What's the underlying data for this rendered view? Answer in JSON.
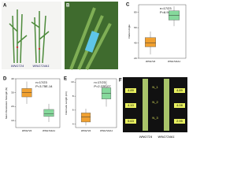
{
  "photos": {
    "A": {
      "label": "A",
      "captions": [
        "WNG724",
        "WNG724A1"
      ]
    },
    "B": {
      "label": "B"
    },
    "F": {
      "label": "F",
      "left": [
        "4.89",
        "4.10",
        "5.63"
      ],
      "right": [
        "4.89",
        "4.08",
        "2.95"
      ],
      "nodes": [
        "N_1",
        "N_2",
        "N_3"
      ],
      "captions": [
        "WNG724",
        "WNG724A1"
      ]
    }
  },
  "chart_data": [
    {
      "type": "box",
      "panel": "C",
      "ylabel": "Flatten Angle",
      "annotation": [
        "n=17/23",
        "P=6.98E-29"
      ],
      "categories": [
        "WNG724",
        "WNG724A1"
      ],
      "colors": [
        "#f0a030",
        "#86d99c"
      ],
      "boxes": [
        {
          "min": 25,
          "q1": 35,
          "median": 40,
          "q3": 47,
          "max": 55
        },
        {
          "min": 62,
          "q1": 70,
          "median": 76,
          "q3": 82,
          "max": 88
        }
      ],
      "ylim": [
        20,
        90
      ],
      "yticks": [
        20,
        40,
        60,
        80
      ]
    },
    {
      "type": "box",
      "panel": "D",
      "ylabel": "Stem Penetration Strength (N)",
      "annotation": [
        "n=17/23",
        "P=3.75E-14"
      ],
      "categories": [
        "WNG724",
        "WNG724A1"
      ],
      "colors": [
        "#f0a030",
        "#86d99c"
      ],
      "boxes": [
        {
          "min": 22,
          "q1": 27,
          "median": 30,
          "q3": 33,
          "max": 38
        },
        {
          "min": 9,
          "q1": 13,
          "median": 15,
          "q3": 18,
          "max": 22
        }
      ],
      "ylim": [
        5,
        40
      ],
      "yticks": [
        10,
        20,
        30,
        40
      ]
    },
    {
      "type": "box",
      "panel": "E",
      "ylabel": "Internode Length (cm)",
      "annotation": [
        "n=17/23",
        "P=2.22E-07"
      ],
      "categories": [
        "WNG724",
        "WNG724A1"
      ],
      "colors": [
        "#f0a030",
        "#86d99c"
      ],
      "boxes": [
        {
          "min": 3.8,
          "q1": 4.3,
          "median": 5.0,
          "q3": 5.6,
          "max": 6.2
        },
        {
          "min": 6.5,
          "q1": 7.6,
          "median": 8.4,
          "q3": 9.2,
          "max": 10.2
        }
      ],
      "ylim": [
        3.5,
        10.5
      ],
      "yticks": [
        4,
        6,
        8,
        10
      ]
    }
  ]
}
